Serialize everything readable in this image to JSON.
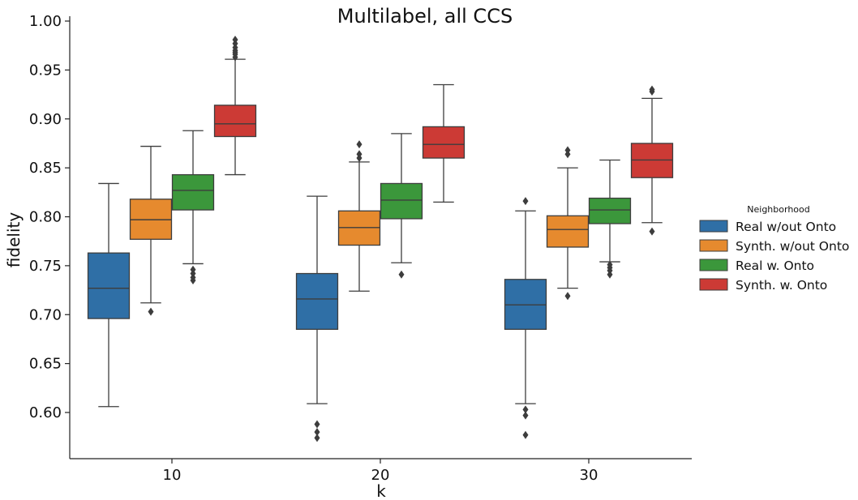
{
  "chart_data": {
    "type": "box",
    "title": "Multilabel, all CCS",
    "xlabel": "k",
    "ylabel": "fidelity",
    "ylim": [
      0.55,
      1.0
    ],
    "yticks": [
      "0.60",
      "0.65",
      "0.70",
      "0.75",
      "0.80",
      "0.85",
      "0.90",
      "0.95",
      "1.00"
    ],
    "categories": [
      "10",
      "20",
      "30"
    ],
    "legend": {
      "title": "Neighborhood",
      "placement": "right"
    },
    "grid": false,
    "series": [
      {
        "name": "Real w/out Onto",
        "color": "#2f6fa6",
        "boxes": [
          {
            "whisker_low": 0.606,
            "q1": 0.696,
            "median": 0.727,
            "q3": 0.763,
            "whisker_high": 0.834,
            "outliers": []
          },
          {
            "whisker_low": 0.609,
            "q1": 0.685,
            "median": 0.716,
            "q3": 0.742,
            "whisker_high": 0.821,
            "outliers": [
              0.574,
              0.58,
              0.588
            ]
          },
          {
            "whisker_low": 0.609,
            "q1": 0.685,
            "median": 0.71,
            "q3": 0.736,
            "whisker_high": 0.806,
            "outliers": [
              0.577,
              0.597,
              0.603,
              0.816
            ]
          }
        ]
      },
      {
        "name": "Synth. w/out Onto",
        "color": "#e68a2e",
        "boxes": [
          {
            "whisker_low": 0.712,
            "q1": 0.777,
            "median": 0.797,
            "q3": 0.818,
            "whisker_high": 0.872,
            "outliers": [
              0.703
            ]
          },
          {
            "whisker_low": 0.724,
            "q1": 0.771,
            "median": 0.789,
            "q3": 0.806,
            "whisker_high": 0.856,
            "outliers": [
              0.86,
              0.864,
              0.874
            ]
          },
          {
            "whisker_low": 0.727,
            "q1": 0.769,
            "median": 0.787,
            "q3": 0.801,
            "whisker_high": 0.85,
            "outliers": [
              0.719,
              0.864,
              0.868
            ]
          }
        ]
      },
      {
        "name": "Real w. Onto",
        "color": "#3b973b",
        "boxes": [
          {
            "whisker_low": 0.752,
            "q1": 0.807,
            "median": 0.827,
            "q3": 0.843,
            "whisker_high": 0.888,
            "outliers": [
              0.735,
              0.738,
              0.742,
              0.746
            ]
          },
          {
            "whisker_low": 0.753,
            "q1": 0.798,
            "median": 0.817,
            "q3": 0.834,
            "whisker_high": 0.885,
            "outliers": [
              0.741
            ]
          },
          {
            "whisker_low": 0.754,
            "q1": 0.793,
            "median": 0.807,
            "q3": 0.819,
            "whisker_high": 0.858,
            "outliers": [
              0.741,
              0.745,
              0.748,
              0.751
            ]
          }
        ]
      },
      {
        "name": "Synth. w. Onto",
        "color": "#cc3a35",
        "boxes": [
          {
            "whisker_low": 0.843,
            "q1": 0.882,
            "median": 0.895,
            "q3": 0.914,
            "whisker_high": 0.961,
            "outliers": [
              0.963,
              0.966,
              0.968,
              0.97,
              0.973,
              0.977,
              0.981
            ]
          },
          {
            "whisker_low": 0.815,
            "q1": 0.86,
            "median": 0.874,
            "q3": 0.892,
            "whisker_high": 0.935,
            "outliers": []
          },
          {
            "whisker_low": 0.794,
            "q1": 0.84,
            "median": 0.858,
            "q3": 0.875,
            "whisker_high": 0.921,
            "outliers": [
              0.785,
              0.928,
              0.93
            ]
          }
        ]
      }
    ]
  }
}
